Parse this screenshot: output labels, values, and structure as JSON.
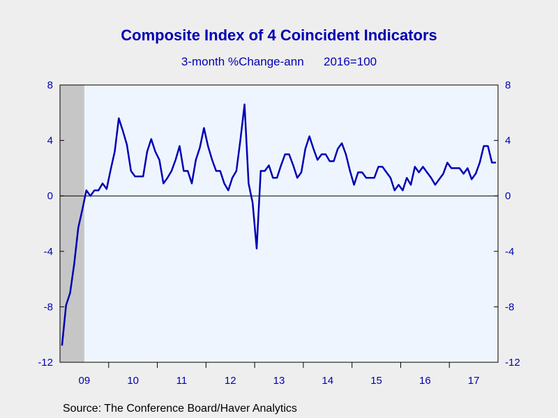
{
  "chart_data": {
    "type": "line",
    "title": "Composite Index of 4 Coincident Indicators",
    "subtitle": "3-month %Change-ann      2016=100",
    "source": "Source:  The Conference Board/Haver Analytics",
    "ylim": [
      -12,
      8
    ],
    "yticks": [
      "8",
      "4",
      "0",
      "-4",
      "-8",
      "-12"
    ],
    "xlim": [
      "2009-01",
      "2017-12"
    ],
    "xtick_labels": [
      "09",
      "10",
      "11",
      "12",
      "13",
      "14",
      "15",
      "16",
      "17"
    ],
    "recession": {
      "start": "2009-01",
      "end": "2009-06"
    },
    "grid": false,
    "zero_line": true,
    "series": [
      {
        "color": "#0000b4",
        "x": [
          "2009-01",
          "2009-02",
          "2009-03",
          "2009-04",
          "2009-05",
          "2009-06",
          "2009-07",
          "2009-08",
          "2009-09",
          "2009-10",
          "2009-11",
          "2009-12",
          "2010-01",
          "2010-02",
          "2010-03",
          "2010-04",
          "2010-05",
          "2010-06",
          "2010-07",
          "2010-08",
          "2010-09",
          "2010-10",
          "2010-11",
          "2010-12",
          "2011-01",
          "2011-02",
          "2011-03",
          "2011-04",
          "2011-05",
          "2011-06",
          "2011-07",
          "2011-08",
          "2011-09",
          "2011-10",
          "2011-11",
          "2011-12",
          "2012-01",
          "2012-02",
          "2012-03",
          "2012-04",
          "2012-05",
          "2012-06",
          "2012-07",
          "2012-08",
          "2012-09",
          "2012-10",
          "2012-11",
          "2012-12",
          "2013-01",
          "2013-02",
          "2013-03",
          "2013-04",
          "2013-05",
          "2013-06",
          "2013-07",
          "2013-08",
          "2013-09",
          "2013-10",
          "2013-11",
          "2013-12",
          "2014-01",
          "2014-02",
          "2014-03",
          "2014-04",
          "2014-05",
          "2014-06",
          "2014-07",
          "2014-08",
          "2014-09",
          "2014-10",
          "2014-11",
          "2014-12",
          "2015-01",
          "2015-02",
          "2015-03",
          "2015-04",
          "2015-05",
          "2015-06",
          "2015-07",
          "2015-08",
          "2015-09",
          "2015-10",
          "2015-11",
          "2015-12",
          "2016-01",
          "2016-02",
          "2016-03",
          "2016-04",
          "2016-05",
          "2016-06",
          "2016-07",
          "2016-08",
          "2016-09",
          "2016-10",
          "2016-11",
          "2016-12",
          "2017-01",
          "2017-02",
          "2017-03",
          "2017-04",
          "2017-05",
          "2017-06",
          "2017-07",
          "2017-08",
          "2017-09",
          "2017-10",
          "2017-11",
          "2017-12"
        ],
        "values": [
          -10.8,
          -7.9,
          -7.0,
          -4.9,
          -2.3,
          -1.0,
          0.4,
          0.0,
          0.4,
          0.4,
          0.9,
          0.5,
          1.9,
          3.2,
          5.6,
          4.7,
          3.7,
          1.8,
          1.4,
          1.4,
          1.4,
          3.2,
          4.1,
          3.2,
          2.6,
          0.9,
          1.3,
          1.8,
          2.6,
          3.6,
          1.8,
          1.8,
          0.9,
          2.6,
          3.5,
          4.9,
          3.6,
          2.6,
          1.8,
          1.8,
          0.9,
          0.4,
          1.3,
          1.8,
          4.1,
          6.6,
          0.9,
          -0.5,
          -3.8,
          1.8,
          1.8,
          2.2,
          1.3,
          1.3,
          2.2,
          3.0,
          3.0,
          2.2,
          1.3,
          1.7,
          3.4,
          4.3,
          3.4,
          2.6,
          3.0,
          3.0,
          2.5,
          2.5,
          3.4,
          3.8,
          3.0,
          1.8,
          0.8,
          1.7,
          1.7,
          1.3,
          1.3,
          1.3,
          2.1,
          2.1,
          1.7,
          1.3,
          0.4,
          0.8,
          0.4,
          1.3,
          0.8,
          2.1,
          1.7,
          2.1,
          1.7,
          1.3,
          0.8,
          1.2,
          1.6,
          2.4,
          2.0,
          2.0,
          2.0,
          1.6,
          2.0,
          1.2,
          1.6,
          2.4,
          3.6,
          3.6,
          2.4,
          2.4
        ]
      }
    ]
  }
}
